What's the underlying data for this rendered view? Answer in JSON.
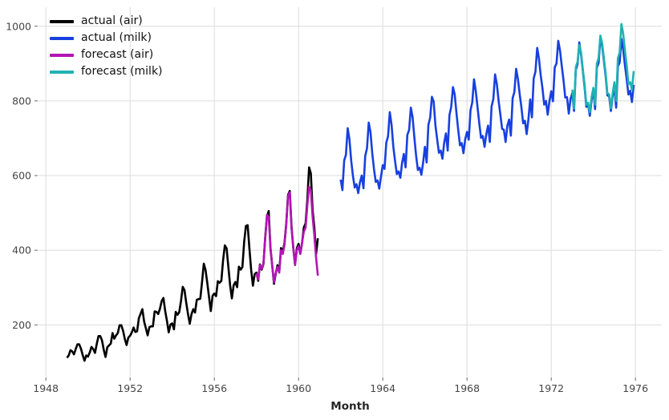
{
  "chart_data": {
    "type": "line",
    "title": "",
    "xlabel": "Month",
    "ylabel": "",
    "grid": true,
    "legend_position": "top-left",
    "x_ticks": [
      1948,
      1952,
      1956,
      1960,
      1964,
      1968,
      1972,
      1976
    ],
    "y_ticks": [
      200,
      400,
      600,
      800,
      1000
    ],
    "x_range": [
      1947.65,
      1977.25
    ],
    "y_range": [
      59,
      1051
    ],
    "colors": {
      "grid": "#dcdcdc",
      "tick": "#666666",
      "tick_label": "#454545",
      "axis_label": "#262626"
    },
    "series": [
      {
        "name": "actual (air)",
        "color": "#000000",
        "start_year": 1949,
        "frequency": "monthly",
        "values": [
          112,
          118,
          132,
          129,
          121,
          135,
          148,
          148,
          136,
          119,
          104,
          118,
          115,
          126,
          141,
          135,
          125,
          149,
          170,
          170,
          158,
          133,
          114,
          140,
          145,
          150,
          178,
          163,
          172,
          178,
          199,
          199,
          184,
          162,
          146,
          166,
          171,
          180,
          193,
          181,
          183,
          218,
          230,
          242,
          209,
          191,
          172,
          194,
          196,
          196,
          236,
          235,
          229,
          243,
          264,
          272,
          237,
          211,
          180,
          201,
          204,
          188,
          235,
          227,
          234,
          264,
          302,
          293,
          259,
          229,
          203,
          229,
          242,
          233,
          267,
          269,
          270,
          315,
          364,
          347,
          312,
          274,
          237,
          278,
          284,
          277,
          317,
          313,
          318,
          374,
          413,
          405,
          355,
          306,
          271,
          306,
          315,
          301,
          356,
          348,
          355,
          422,
          465,
          467,
          404,
          347,
          305,
          336,
          340,
          318,
          362,
          348,
          363,
          435,
          491,
          505,
          404,
          359,
          310,
          337,
          360,
          342,
          406,
          396,
          420,
          472,
          548,
          559,
          463,
          407,
          362,
          405,
          417,
          391,
          419,
          461,
          472,
          535,
          622,
          606,
          508,
          461,
          390,
          432
        ]
      },
      {
        "name": "actual (milk)",
        "color": "#1840e0",
        "start_year": 1962,
        "frequency": "monthly",
        "values": [
          589,
          561,
          640,
          656,
          727,
          697,
          640,
          599,
          568,
          577,
          553,
          582,
          600,
          566,
          653,
          673,
          742,
          716,
          660,
          617,
          583,
          587,
          565,
          598,
          628,
          618,
          688,
          705,
          770,
          736,
          678,
          639,
          604,
          611,
          594,
          634,
          658,
          622,
          709,
          722,
          782,
          756,
          702,
          653,
          615,
          621,
          602,
          635,
          677,
          635,
          736,
          755,
          811,
          798,
          735,
          697,
          661,
          667,
          645,
          688,
          713,
          667,
          762,
          784,
          837,
          817,
          767,
          722,
          681,
          687,
          660,
          698,
          717,
          696,
          775,
          796,
          858,
          826,
          783,
          740,
          701,
          706,
          677,
          711,
          734,
          690,
          785,
          805,
          871,
          845,
          801,
          764,
          725,
          723,
          690,
          734,
          750,
          707,
          807,
          824,
          886,
          859,
          819,
          783,
          740,
          747,
          711,
          751,
          804,
          756,
          860,
          878,
          942,
          913,
          869,
          834,
          790,
          800,
          763,
          800,
          826,
          799,
          890,
          900,
          961,
          935,
          894,
          855,
          809,
          810,
          766,
          805,
          821,
          773,
          883,
          898,
          957,
          924,
          881,
          837,
          784,
          791,
          760,
          802,
          828,
          778,
          889,
          902,
          969,
          947,
          908,
          867,
          815,
          812,
          773,
          813,
          834,
          782,
          892,
          903,
          966,
          937,
          896,
          858,
          817,
          827,
          797,
          843
        ]
      },
      {
        "name": "forecast (air)",
        "color": "#b315b3",
        "start_year": 1958,
        "frequency": "monthly",
        "values": [
          338,
          322,
          360,
          350,
          365,
          432,
          495,
          488,
          408,
          356,
          314,
          340,
          355,
          340,
          400,
          390,
          415,
          470,
          545,
          555,
          458,
          405,
          360,
          400,
          410,
          390,
          420,
          450,
          460,
          520,
          570,
          560,
          490,
          440,
          380,
          332
        ]
      },
      {
        "name": "forecast (milk)",
        "color": "#20b2b2",
        "start_year": 1973,
        "frequency": "monthly",
        "values": [
          830,
          780,
          890,
          905,
          950,
          930,
          885,
          845,
          790,
          795,
          770,
          810,
          835,
          790,
          900,
          915,
          975,
          955,
          915,
          875,
          820,
          818,
          780,
          820,
          850,
          800,
          915,
          930,
          1006,
          980,
          935,
          895,
          845,
          850,
          830,
          880
        ]
      }
    ]
  }
}
